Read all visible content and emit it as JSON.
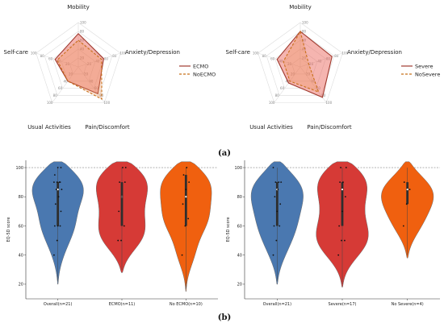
{
  "panel_labels": [
    "(a)",
    "(b)"
  ],
  "chart_data": [
    {
      "type": "radar",
      "axes": [
        "Mobility",
        "Anxiety/Depression",
        "Pain/Discomfort",
        "Usual Activities",
        "Self-care"
      ],
      "rmax": 100,
      "ticks": [
        "20",
        "40",
        "60",
        "80",
        "100"
      ],
      "series": [
        {
          "name": "ECMO",
          "values": [
            75,
            60,
            75,
            40,
            55
          ],
          "color": "#a03a2e",
          "dash": "solid"
        },
        {
          "name": "NoECMO",
          "values": [
            60,
            55,
            90,
            40,
            50
          ],
          "color": "#c8701a",
          "dash": "dashed"
        }
      ],
      "legend_position": "right"
    },
    {
      "type": "radar",
      "axes": [
        "Mobility",
        "Anxiety/Depression",
        "Pain/Discomfort",
        "Usual Activities",
        "Self-care"
      ],
      "rmax": 100,
      "ticks": [
        "20",
        "40",
        "60",
        "80",
        "100"
      ],
      "series": [
        {
          "name": "Severe",
          "values": [
            80,
            75,
            85,
            45,
            55
          ],
          "color": "#a03a2e",
          "dash": "solid"
        },
        {
          "name": "NoSevere",
          "values": [
            80,
            20,
            70,
            40,
            40
          ],
          "color": "#c8701a",
          "dash": "dashed"
        }
      ],
      "legend_position": "right"
    },
    {
      "type": "violin",
      "ylabel": "EQ-5D score",
      "ylim": [
        10,
        105
      ],
      "yticks": [
        20,
        40,
        60,
        80,
        100
      ],
      "reference_line": 100,
      "categories": [
        "Overall(n=21)",
        "ECMO(n=11)",
        "No ECMO(n=10)"
      ],
      "groups": [
        {
          "color": "#4a78b0",
          "min": 20,
          "max": 104,
          "q1": 60,
          "median": 85,
          "q3": 90,
          "points": [
            40,
            50,
            60,
            60,
            60,
            70,
            75,
            80,
            85,
            85,
            90,
            90,
            90,
            90,
            95,
            100,
            100
          ]
        },
        {
          "color": "#d63a36",
          "min": 28,
          "max": 104,
          "q1": 60,
          "median": 80,
          "q3": 90,
          "points": [
            50,
            50,
            60,
            70,
            80,
            90,
            90,
            100,
            100
          ]
        },
        {
          "color": "#f0600f",
          "min": 15,
          "max": 104,
          "q1": 60,
          "median": 80,
          "q3": 95,
          "points": [
            40,
            60,
            65,
            75,
            85,
            90,
            95,
            100
          ]
        }
      ]
    },
    {
      "type": "violin",
      "ylabel": "EQ-5D score",
      "ylim": [
        10,
        105
      ],
      "yticks": [
        20,
        40,
        60,
        80,
        100
      ],
      "reference_line": 100,
      "categories": [
        "Overall(n=21)",
        "Severe(n=17)",
        "No Severe(n=4)"
      ],
      "groups": [
        {
          "color": "#4a78b0",
          "min": 20,
          "max": 104,
          "q1": 60,
          "median": 85,
          "q3": 90,
          "points": [
            40,
            50,
            60,
            60,
            70,
            75,
            80,
            85,
            90,
            90,
            90,
            100
          ]
        },
        {
          "color": "#d63a36",
          "min": 18,
          "max": 104,
          "q1": 60,
          "median": 85,
          "q3": 90,
          "points": [
            40,
            50,
            50,
            60,
            70,
            80,
            90,
            90,
            100,
            100
          ]
        },
        {
          "color": "#f0600f",
          "min": 38,
          "max": 104,
          "q1": 75,
          "median": 85,
          "q3": 90,
          "points": [
            60,
            75,
            85,
            90
          ]
        }
      ]
    }
  ]
}
